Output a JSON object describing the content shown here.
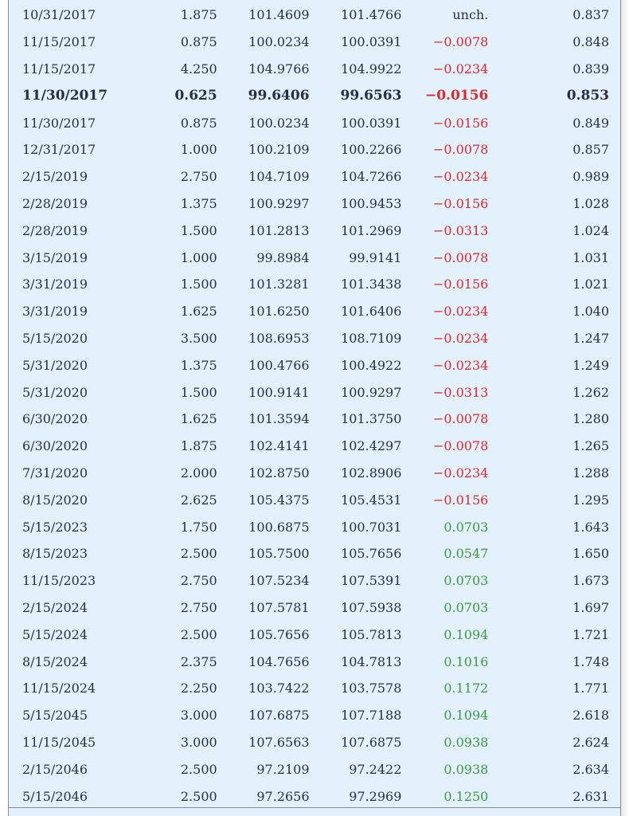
{
  "rows": [
    {
      "date": "10/31/2017",
      "coupon": "1.875",
      "bid": "101.4609",
      "ask": "101.4766",
      "chg": "unch.",
      "yld": "0.837",
      "dir": "unch",
      "bold": false
    },
    {
      "date": "11/15/2017",
      "coupon": "0.875",
      "bid": "100.0234",
      "ask": "100.0391",
      "chg": "−0.0078",
      "yld": "0.848",
      "dir": "neg",
      "bold": false
    },
    {
      "date": "11/15/2017",
      "coupon": "4.250",
      "bid": "104.9766",
      "ask": "104.9922",
      "chg": "−0.0234",
      "yld": "0.839",
      "dir": "neg",
      "bold": false
    },
    {
      "date": "11/30/2017",
      "coupon": "0.625",
      "bid": "99.6406",
      "ask": "99.6563",
      "chg": "−0.0156",
      "yld": "0.853",
      "dir": "neg",
      "bold": true
    },
    {
      "date": "11/30/2017",
      "coupon": "0.875",
      "bid": "100.0234",
      "ask": "100.0391",
      "chg": "−0.0156",
      "yld": "0.849",
      "dir": "neg",
      "bold": false
    },
    {
      "date": "12/31/2017",
      "coupon": "1.000",
      "bid": "100.2109",
      "ask": "100.2266",
      "chg": "−0.0078",
      "yld": "0.857",
      "dir": "neg",
      "bold": false
    },
    {
      "date": "2/15/2019",
      "coupon": "2.750",
      "bid": "104.7109",
      "ask": "104.7266",
      "chg": "−0.0234",
      "yld": "0.989",
      "dir": "neg",
      "bold": false
    },
    {
      "date": "2/28/2019",
      "coupon": "1.375",
      "bid": "100.9297",
      "ask": "100.9453",
      "chg": "−0.0156",
      "yld": "1.028",
      "dir": "neg",
      "bold": false
    },
    {
      "date": "2/28/2019",
      "coupon": "1.500",
      "bid": "101.2813",
      "ask": "101.2969",
      "chg": "−0.0313",
      "yld": "1.024",
      "dir": "neg",
      "bold": false
    },
    {
      "date": "3/15/2019",
      "coupon": "1.000",
      "bid": "99.8984",
      "ask": "99.9141",
      "chg": "−0.0078",
      "yld": "1.031",
      "dir": "neg",
      "bold": false
    },
    {
      "date": "3/31/2019",
      "coupon": "1.500",
      "bid": "101.3281",
      "ask": "101.3438",
      "chg": "−0.0156",
      "yld": "1.021",
      "dir": "neg",
      "bold": false
    },
    {
      "date": "3/31/2019",
      "coupon": "1.625",
      "bid": "101.6250",
      "ask": "101.6406",
      "chg": "−0.0234",
      "yld": "1.040",
      "dir": "neg",
      "bold": false
    },
    {
      "date": "5/15/2020",
      "coupon": "3.500",
      "bid": "108.6953",
      "ask": "108.7109",
      "chg": "−0.0234",
      "yld": "1.247",
      "dir": "neg",
      "bold": false
    },
    {
      "date": "5/31/2020",
      "coupon": "1.375",
      "bid": "100.4766",
      "ask": "100.4922",
      "chg": "−0.0234",
      "yld": "1.249",
      "dir": "neg",
      "bold": false
    },
    {
      "date": "5/31/2020",
      "coupon": "1.500",
      "bid": "100.9141",
      "ask": "100.9297",
      "chg": "−0.0313",
      "yld": "1.262",
      "dir": "neg",
      "bold": false
    },
    {
      "date": "6/30/2020",
      "coupon": "1.625",
      "bid": "101.3594",
      "ask": "101.3750",
      "chg": "−0.0078",
      "yld": "1.280",
      "dir": "neg",
      "bold": false
    },
    {
      "date": "6/30/2020",
      "coupon": "1.875",
      "bid": "102.4141",
      "ask": "102.4297",
      "chg": "−0.0078",
      "yld": "1.265",
      "dir": "neg",
      "bold": false
    },
    {
      "date": "7/31/2020",
      "coupon": "2.000",
      "bid": "102.8750",
      "ask": "102.8906",
      "chg": "−0.0234",
      "yld": "1.288",
      "dir": "neg",
      "bold": false
    },
    {
      "date": "8/15/2020",
      "coupon": "2.625",
      "bid": "105.4375",
      "ask": "105.4531",
      "chg": "−0.0156",
      "yld": "1.295",
      "dir": "neg",
      "bold": false
    },
    {
      "date": "5/15/2023",
      "coupon": "1.750",
      "bid": "100.6875",
      "ask": "100.7031",
      "chg": "0.0703",
      "yld": "1.643",
      "dir": "pos",
      "bold": false
    },
    {
      "date": "8/15/2023",
      "coupon": "2.500",
      "bid": "105.7500",
      "ask": "105.7656",
      "chg": "0.0547",
      "yld": "1.650",
      "dir": "pos",
      "bold": false
    },
    {
      "date": "11/15/2023",
      "coupon": "2.750",
      "bid": "107.5234",
      "ask": "107.5391",
      "chg": "0.0703",
      "yld": "1.673",
      "dir": "pos",
      "bold": false
    },
    {
      "date": "2/15/2024",
      "coupon": "2.750",
      "bid": "107.5781",
      "ask": "107.5938",
      "chg": "0.0703",
      "yld": "1.697",
      "dir": "pos",
      "bold": false
    },
    {
      "date": "5/15/2024",
      "coupon": "2.500",
      "bid": "105.7656",
      "ask": "105.7813",
      "chg": "0.1094",
      "yld": "1.721",
      "dir": "pos",
      "bold": false
    },
    {
      "date": "8/15/2024",
      "coupon": "2.375",
      "bid": "104.7656",
      "ask": "104.7813",
      "chg": "0.1016",
      "yld": "1.748",
      "dir": "pos",
      "bold": false
    },
    {
      "date": "11/15/2024",
      "coupon": "2.250",
      "bid": "103.7422",
      "ask": "103.7578",
      "chg": "0.1172",
      "yld": "1.771",
      "dir": "pos",
      "bold": false
    },
    {
      "date": "5/15/2045",
      "coupon": "3.000",
      "bid": "107.6875",
      "ask": "107.7188",
      "chg": "0.1094",
      "yld": "2.618",
      "dir": "pos",
      "bold": false
    },
    {
      "date": "11/15/2045",
      "coupon": "3.000",
      "bid": "107.6563",
      "ask": "107.6875",
      "chg": "0.0938",
      "yld": "2.624",
      "dir": "pos",
      "bold": false
    },
    {
      "date": "2/15/2046",
      "coupon": "2.500",
      "bid": "97.2109",
      "ask": "97.2422",
      "chg": "0.0938",
      "yld": "2.634",
      "dir": "pos",
      "bold": false
    },
    {
      "date": "5/15/2046",
      "coupon": "2.500",
      "bid": "97.2656",
      "ask": "97.2969",
      "chg": "0.1250",
      "yld": "2.631",
      "dir": "pos",
      "bold": false
    }
  ],
  "colors": {
    "panel_bg": "#e2f1fb",
    "text": "#2a2d4a",
    "negative": "#e0282d",
    "positive": "#3f9a3f"
  }
}
